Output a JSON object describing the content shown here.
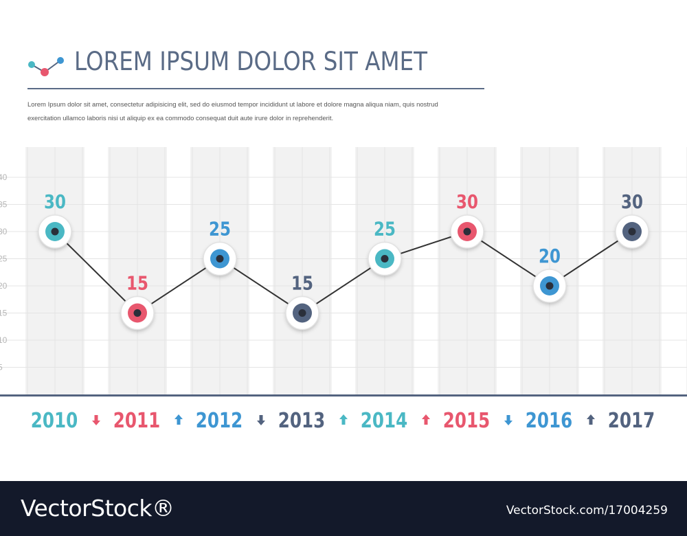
{
  "header": {
    "title": "LOREM IPSUM DOLOR SIT AMET",
    "description_line1": "Lorem Ipsum dolor sit amet, consectetur adipisicing elit, sed do eiusmod tempor incididunt ut labore et dolore magna aliqua niam, quis nostrud",
    "description_line2": "exercitation ullamco laboris nisi ut aliquip ex ea commodo consequat duit aute irure dolor in reprehenderit."
  },
  "chart_data": {
    "type": "line",
    "categories": [
      "2010",
      "2011",
      "2012",
      "2013",
      "2014",
      "2015",
      "2016",
      "2017"
    ],
    "values": [
      30,
      15,
      25,
      15,
      25,
      30,
      20,
      30
    ],
    "data_labels": [
      "30",
      "15",
      "25",
      "15",
      "25",
      "30",
      "20",
      "30"
    ],
    "ytick_labels": [
      "40",
      "35",
      "30",
      "25",
      "20",
      "15",
      "10",
      "5"
    ],
    "ylim": [
      0,
      40
    ],
    "grid": true,
    "trend_arrows": [
      "down",
      "up",
      "down",
      "up",
      "up",
      "down",
      "up"
    ],
    "point_colors": [
      "#4ab8c4",
      "#e8576e",
      "#3e96d2",
      "#53637f",
      "#4ab8c4",
      "#e8576e",
      "#3e96d2",
      "#53637f"
    ],
    "line_color": "#333333"
  },
  "footer": {
    "brand": "VectorStock®",
    "ref": "VectorStock.com/17004259"
  },
  "colors": {
    "teal": "#4ab8c4",
    "pink": "#e8576e",
    "blue": "#3e96d2",
    "slate": "#53637f",
    "footer_bg": "#13192a"
  },
  "icons": {
    "logo": "line-chart-logo-icon",
    "arrow_up": "arrow-up-icon",
    "arrow_down": "arrow-down-icon"
  }
}
